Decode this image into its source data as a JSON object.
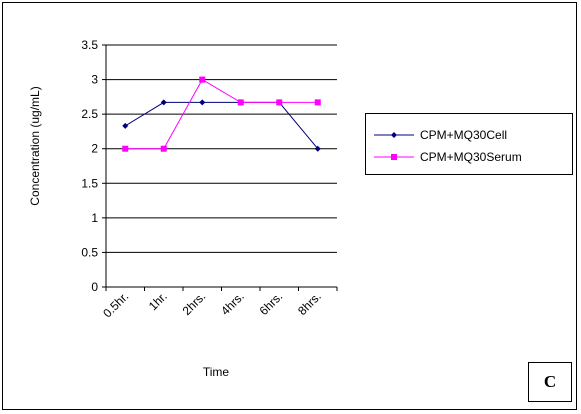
{
  "chart_data": {
    "type": "line",
    "categories": [
      "0.5hr.",
      "1hr.",
      "2hrs.",
      "4hrs.",
      "6hrs.",
      "8hrs."
    ],
    "series": [
      {
        "name": "CPM+MQ30Cell",
        "values": [
          2.33,
          2.67,
          2.67,
          2.67,
          2.67,
          2.0
        ],
        "color": "#000080",
        "marker": "diamond"
      },
      {
        "name": "CPM+MQ30Serum",
        "values": [
          2.0,
          2.0,
          3.0,
          2.67,
          2.67,
          2.67
        ],
        "color": "#ff00ff",
        "marker": "square"
      }
    ],
    "xlabel": "Time",
    "ylabel": "Concentration (ug/mL)",
    "ylim": [
      0,
      3.5
    ],
    "yticks": [
      "0",
      "0.5",
      "1",
      "1.5",
      "2",
      "2.5",
      "3",
      "3.5"
    ],
    "grid": true,
    "legend": "right"
  },
  "panel_label": "C"
}
